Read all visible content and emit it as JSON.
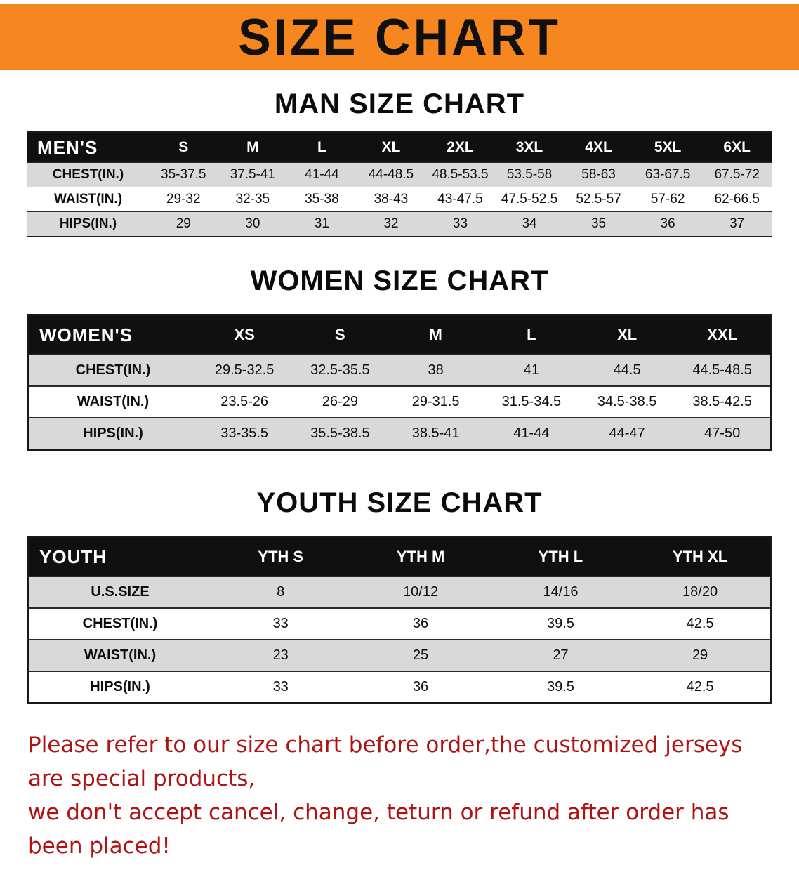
{
  "banner": {
    "title": "SIZE CHART",
    "bg_color": "#F6861F",
    "text_color": "#101010"
  },
  "colors": {
    "table_header_bg": "#101010",
    "table_header_text": "#ffffff",
    "row_stripe": "#d9d9d9",
    "footer_text": "#b01111"
  },
  "sections": {
    "men": {
      "heading": "MAN SIZE CHART",
      "table": {
        "label": "MEN'S",
        "columns": [
          "S",
          "M",
          "L",
          "XL",
          "2XL",
          "3XL",
          "4XL",
          "5XL",
          "6XL"
        ],
        "rows": [
          {
            "label": "CHEST(IN.)",
            "values": [
              "35-37.5",
              "37.5-41",
              "41-44",
              "44-48.5",
              "48.5-53.5",
              "53.5-58",
              "58-63",
              "63-67.5",
              "67.5-72"
            ]
          },
          {
            "label": "WAIST(IN.)",
            "values": [
              "29-32",
              "32-35",
              "35-38",
              "38-43",
              "43-47.5",
              "47.5-52.5",
              "52.5-57",
              "57-62",
              "62-66.5"
            ]
          },
          {
            "label": "HIPS(IN.)",
            "values": [
              "29",
              "30",
              "31",
              "32",
              "33",
              "34",
              "35",
              "36",
              "37"
            ]
          }
        ]
      }
    },
    "women": {
      "heading": "WOMEN SIZE CHART",
      "table": {
        "label": "WOMEN'S",
        "columns": [
          "XS",
          "S",
          "M",
          "L",
          "XL",
          "XXL"
        ],
        "rows": [
          {
            "label": "CHEST(IN.)",
            "values": [
              "29.5-32.5",
              "32.5-35.5",
              "38",
              "41",
              "44.5",
              "44.5-48.5"
            ]
          },
          {
            "label": "WAIST(IN.)",
            "values": [
              "23.5-26",
              "26-29",
              "29-31.5",
              "31.5-34.5",
              "34.5-38.5",
              "38.5-42.5"
            ]
          },
          {
            "label": "HIPS(IN.)",
            "values": [
              "33-35.5",
              "35.5-38.5",
              "38.5-41",
              "41-44",
              "44-47",
              "47-50"
            ]
          }
        ]
      }
    },
    "youth": {
      "heading": "YOUTH SIZE CHART",
      "table": {
        "label": "YOUTH",
        "columns": [
          "YTH S",
          "YTH M",
          "YTH L",
          "YTH XL"
        ],
        "rows": [
          {
            "label": "U.S.SIZE",
            "values": [
              "8",
              "10/12",
              "14/16",
              "18/20"
            ]
          },
          {
            "label": "CHEST(IN.)",
            "values": [
              "33",
              "36",
              "39.5",
              "42.5"
            ]
          },
          {
            "label": "WAIST(IN.)",
            "values": [
              "23",
              "25",
              "27",
              "29"
            ]
          },
          {
            "label": "HIPS(IN.)",
            "values": [
              "33",
              "36",
              "39.5",
              "42.5"
            ]
          }
        ]
      }
    }
  },
  "footer": {
    "line1": "Please refer to our size chart before order,the customized jerseys are special products,",
    "line2": "we don't accept cancel, change, teturn or refund after order has been placed!"
  }
}
